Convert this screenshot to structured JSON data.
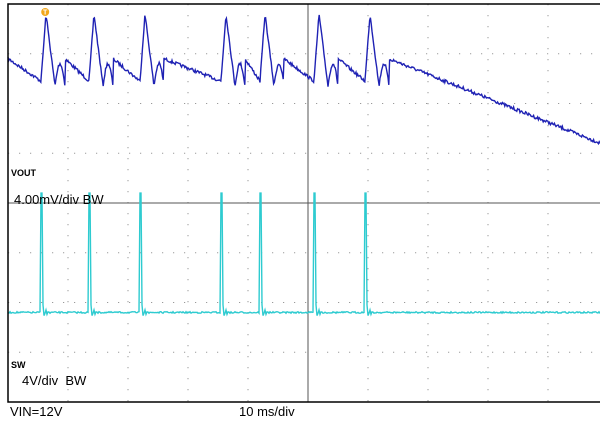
{
  "chart_data": {
    "type": "line",
    "grid": true,
    "x_divisions": 10,
    "y_divisions": 8,
    "trigger_marker": "T",
    "timebase": "10 ms/div",
    "series": [
      {
        "name": "VOUT",
        "color": "#1f22b4",
        "scale": "4.00mV/div BW",
        "baseline_div": 1.25,
        "ripple_peak_div": 1.0,
        "event_times_div": [
          0.55,
          1.35,
          2.2,
          3.55,
          4.2,
          5.1,
          5.95
        ]
      },
      {
        "name": "SW",
        "color": "#2ecbd0",
        "scale": "4V/div  BW",
        "baseline_div": 2.5,
        "pulse_peak_div": 2.4,
        "pulse_times_div": [
          0.55,
          1.35,
          2.2,
          3.55,
          4.2,
          5.1,
          5.95
        ]
      }
    ]
  },
  "footer": {
    "vin": "VIN=12V",
    "timebase": "10 ms/div"
  }
}
